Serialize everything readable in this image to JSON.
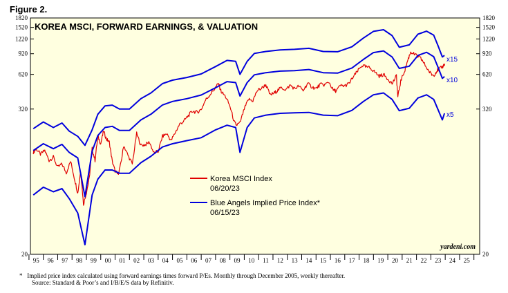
{
  "figure_label": "Figure 2.",
  "footnote": "Implied price index calculated using forward earnings times forward P/Es. Monthly through December 2005, weekly thereafter.",
  "footnote_marker": "*",
  "source": "Source: Standard & Poor’s and I/B/E/S data by Refinitiv.",
  "watermark": "yardeni.com",
  "colors": {
    "background": "#ffffe0",
    "msci": "#e00000",
    "bands": "#0000dd",
    "axis": "#000000"
  },
  "chart_data": {
    "type": "line",
    "title": "KOREA MSCI, FORWARD EARNINGS, & VALUATION",
    "yscale": "log",
    "ylim": [
      20,
      1820
    ],
    "xlim": [
      1994.6,
      2025.9
    ],
    "ytick_labels": [
      "1820",
      "1520",
      "1220",
      "920",
      "620",
      "320",
      "20"
    ],
    "yticks": [
      1820,
      1520,
      1220,
      920,
      620,
      320,
      20
    ],
    "xtick_labels": [
      "95",
      "96",
      "97",
      "98",
      "99",
      "00",
      "01",
      "02",
      "03",
      "04",
      "05",
      "06",
      "07",
      "08",
      "09",
      "10",
      "11",
      "12",
      "13",
      "14",
      "15",
      "16",
      "17",
      "18",
      "19",
      "20",
      "21",
      "22",
      "23",
      "24",
      "25"
    ],
    "xtick_years": [
      1995,
      1996,
      1997,
      1998,
      1999,
      2000,
      2001,
      2002,
      2003,
      2004,
      2005,
      2006,
      2007,
      2008,
      2009,
      2010,
      2011,
      2012,
      2013,
      2014,
      2015,
      2016,
      2017,
      2018,
      2019,
      2020,
      2021,
      2022,
      2023,
      2024,
      2025
    ],
    "legend": [
      {
        "label": "Korea MSCI Index",
        "date": "06/20/23",
        "color": "#e00000"
      },
      {
        "label": "Blue Angels Implied Price Index*",
        "date": "06/15/23",
        "color": "#0000dd"
      }
    ],
    "band_labels": [
      "x15",
      "x10",
      "x5"
    ],
    "series": [
      {
        "name": "Korea MSCI Index",
        "x": [
          1994.8,
          1995.0,
          1995.3,
          1995.6,
          1995.9,
          1996.2,
          1996.5,
          1996.8,
          1997.1,
          1997.4,
          1997.7,
          1997.9,
          1998.1,
          1998.3,
          1998.5,
          1998.7,
          1998.9,
          1999.1,
          1999.3,
          1999.5,
          1999.7,
          1999.9,
          2000.1,
          2000.3,
          2000.5,
          2000.7,
          2000.9,
          2001.1,
          2001.4,
          2001.7,
          2002.0,
          2002.3,
          2002.6,
          2002.9,
          2003.2,
          2003.5,
          2003.8,
          2004.1,
          2004.4,
          2004.7,
          2005.0,
          2005.3,
          2005.6,
          2005.9,
          2006.2,
          2006.5,
          2006.8,
          2007.1,
          2007.4,
          2007.7,
          2007.9,
          2008.2,
          2008.5,
          2008.8,
          2008.95,
          2009.2,
          2009.5,
          2009.8,
          2010.1,
          2010.4,
          2010.7,
          2011.0,
          2011.3,
          2011.6,
          2011.8,
          2012.1,
          2012.4,
          2012.7,
          2013.0,
          2013.3,
          2013.6,
          2013.9,
          2014.2,
          2014.5,
          2014.8,
          2015.1,
          2015.4,
          2015.7,
          2015.9,
          2016.2,
          2016.5,
          2016.8,
          2017.1,
          2017.4,
          2017.7,
          2018.0,
          2018.3,
          2018.6,
          2018.9,
          2019.2,
          2019.5,
          2019.8,
          2020.1,
          2020.2,
          2020.4,
          2020.7,
          2020.9,
          2021.1,
          2021.4,
          2021.7,
          2021.9,
          2022.2,
          2022.5,
          2022.7,
          2022.9,
          2023.1,
          2023.3,
          2023.47
        ],
        "values": [
          140,
          150,
          135,
          145,
          120,
          128,
          105,
          112,
          95,
          118,
          82,
          64,
          98,
          52,
          65,
          85,
          150,
          120,
          190,
          165,
          210,
          180,
          170,
          118,
          98,
          92,
          112,
          160,
          132,
          112,
          200,
          160,
          162,
          170,
          138,
          142,
          190,
          200,
          175,
          205,
          240,
          255,
          282,
          308,
          300,
          318,
          380,
          420,
          465,
          520,
          445,
          405,
          338,
          250,
          235,
          245,
          320,
          385,
          375,
          455,
          475,
          510,
          418,
          435,
          455,
          482,
          462,
          505,
          472,
          495,
          455,
          520,
          490,
          472,
          512,
          508,
          536,
          458,
          452,
          500,
          498,
          520,
          592,
          660,
          736,
          712,
          700,
          648,
          600,
          618,
          570,
          520,
          600,
          400,
          545,
          680,
          820,
          955,
          900,
          860,
          810,
          705,
          625,
          608,
          660,
          690,
          715,
          760
        ]
      },
      {
        "name": "Blue Angels Implied Price Index x15",
        "x": [
          1994.8,
          1995.5,
          1996.2,
          1996.8,
          1997.3,
          1997.9,
          1998.4,
          1998.9,
          1999.3,
          1999.8,
          2000.3,
          2000.8,
          2001.5,
          2002.3,
          2003.0,
          2003.8,
          2004.5,
          2005.5,
          2006.5,
          2007.5,
          2008.3,
          2008.9,
          2009.2,
          2009.7,
          2010.2,
          2011.0,
          2012.0,
          2013.0,
          2014.0,
          2015.0,
          2016.0,
          2017.0,
          2017.8,
          2018.5,
          2019.2,
          2019.8,
          2020.3,
          2021.0,
          2021.6,
          2022.2,
          2022.7,
          2023.0,
          2023.3,
          2023.45
        ],
        "values": [
          220,
          250,
          225,
          245,
          210,
          190,
          160,
          215,
          290,
          340,
          345,
          320,
          320,
          390,
          435,
          520,
          555,
          585,
          625,
          720,
          810,
          795,
          620,
          795,
          925,
          960,
          990,
          1000,
          1020,
          960,
          955,
          1050,
          1240,
          1410,
          1455,
          1300,
          1040,
          1090,
          1335,
          1415,
          1310,
          1070,
          865,
          890
        ]
      },
      {
        "name": "Blue Angels Implied Price Index x10",
        "x": [
          1994.8,
          1995.5,
          1996.2,
          1996.8,
          1997.3,
          1997.9,
          1998.4,
          1998.9,
          1999.3,
          1999.8,
          2000.3,
          2000.8,
          2001.5,
          2002.3,
          2003.0,
          2003.8,
          2004.5,
          2005.5,
          2006.5,
          2007.5,
          2008.3,
          2008.9,
          2009.2,
          2009.7,
          2010.2,
          2011.0,
          2012.0,
          2013.0,
          2014.0,
          2015.0,
          2016.0,
          2017.0,
          2017.8,
          2018.5,
          2019.2,
          2019.8,
          2020.3,
          2021.0,
          2021.6,
          2022.2,
          2022.7,
          2023.0,
          2023.3,
          2023.45
        ],
        "values": [
          145,
          165,
          150,
          163,
          140,
          126,
          60,
          143,
          193,
          225,
          230,
          213,
          213,
          260,
          290,
          346,
          370,
          390,
          418,
          480,
          540,
          530,
          410,
          530,
          615,
          640,
          660,
          665,
          680,
          640,
          635,
          700,
          825,
          940,
          970,
          865,
          695,
          725,
          890,
          945,
          870,
          710,
          575,
          595
        ]
      },
      {
        "name": "Blue Angels Implied Price Index x5",
        "x": [
          1994.8,
          1995.5,
          1996.2,
          1996.8,
          1997.3,
          1997.9,
          1998.4,
          1998.9,
          1999.3,
          1999.8,
          2000.3,
          2000.8,
          2001.5,
          2002.3,
          2003.0,
          2003.8,
          2004.5,
          2005.5,
          2006.5,
          2007.5,
          2008.3,
          2008.9,
          2009.2,
          2009.7,
          2010.2,
          2011.0,
          2012.0,
          2013.0,
          2014.0,
          2015.0,
          2016.0,
          2017.0,
          2017.8,
          2018.5,
          2019.2,
          2019.8,
          2020.3,
          2021.0,
          2021.6,
          2022.2,
          2022.7,
          2023.0,
          2023.3,
          2023.45
        ],
        "values": [
          62,
          72,
          66,
          70,
          58,
          44,
          24,
          62,
          84,
          100,
          100,
          94,
          94,
          115,
          130,
          155,
          165,
          175,
          185,
          215,
          235,
          225,
          140,
          225,
          270,
          285,
          295,
          298,
          300,
          285,
          282,
          312,
          370,
          420,
          435,
          385,
          310,
          325,
          395,
          420,
          385,
          316,
          260,
          295
        ]
      }
    ]
  }
}
